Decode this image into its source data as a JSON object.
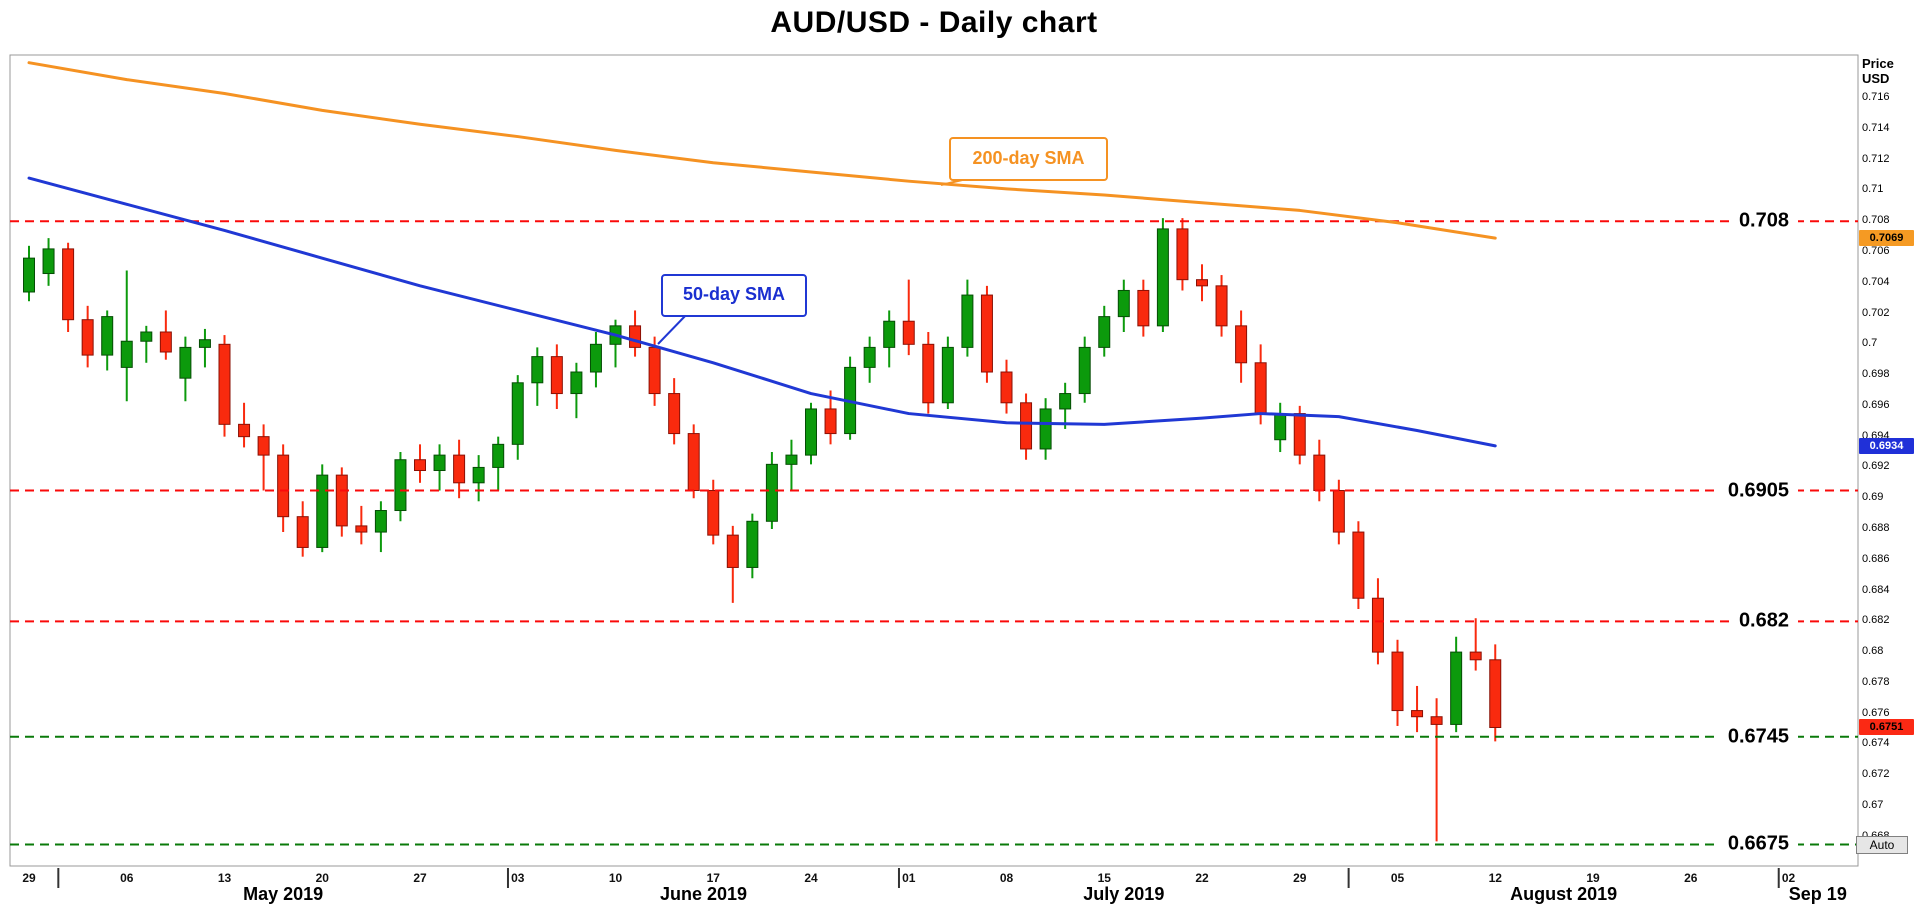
{
  "title": "AUD/USD - Daily chart",
  "controls": {
    "auto_label": "Auto"
  },
  "axis": {
    "price_header": [
      "Price",
      "USD"
    ],
    "price_ticks": [
      "0.716",
      "0.714",
      "0.712",
      "0.71",
      "0.708",
      "0.706",
      "0.704",
      "0.702",
      "0.7",
      "0.698",
      "0.696",
      "0.694",
      "0.692",
      "0.69",
      "0.688",
      "0.686",
      "0.684",
      "0.682",
      "0.68",
      "0.678",
      "0.676",
      "0.674",
      "0.672",
      "0.67",
      "0.668"
    ],
    "date_ticks": [
      {
        "i": 0,
        "label": "29"
      },
      {
        "i": 5,
        "label": "06"
      },
      {
        "i": 10,
        "label": "13"
      },
      {
        "i": 15,
        "label": "20"
      },
      {
        "i": 20,
        "label": "27"
      },
      {
        "i": 25,
        "label": "03"
      },
      {
        "i": 30,
        "label": "10"
      },
      {
        "i": 35,
        "label": "17"
      },
      {
        "i": 40,
        "label": "24"
      },
      {
        "i": 45,
        "label": "01"
      },
      {
        "i": 50,
        "label": "08"
      },
      {
        "i": 55,
        "label": "15"
      },
      {
        "i": 60,
        "label": "22"
      },
      {
        "i": 65,
        "label": "29"
      },
      {
        "i": 70,
        "label": "05"
      },
      {
        "i": 75,
        "label": "12"
      },
      {
        "i": 80,
        "label": "19"
      },
      {
        "i": 85,
        "label": "26"
      },
      {
        "i": 90,
        "label": "02"
      }
    ],
    "month_labels": [
      {
        "i": 13,
        "label": "May 2019"
      },
      {
        "i": 34.5,
        "label": "June 2019"
      },
      {
        "i": 56,
        "label": "July 2019"
      },
      {
        "i": 78.5,
        "label": "August 2019"
      },
      {
        "i": 91.5,
        "label": "Sep 19"
      }
    ],
    "month_separators": [
      1.5,
      24.5,
      44.5,
      67.5,
      89.5
    ]
  },
  "annotations": {
    "sma200": {
      "label": "200-day SMA",
      "color": "#f59222"
    },
    "sma50": {
      "label": "50-day SMA",
      "color": "#2038d4"
    }
  },
  "price_tags": [
    {
      "name": "tag-sma200-value",
      "label": "0.7069",
      "value": 0.7069,
      "bg": "#f59a23",
      "fg": "#000000"
    },
    {
      "name": "tag-sma50-value",
      "label": "0.6934",
      "value": 0.6934,
      "bg": "#2030d8",
      "fg": "#ffffff"
    },
    {
      "name": "tag-last-price",
      "label": "0.6751",
      "value": 0.6751,
      "bg": "#fb2914",
      "fg": "#000000"
    }
  ],
  "chart_data": {
    "type": "candlestick",
    "symbol": "AUD/USD",
    "timeframe": "Daily",
    "title": "AUD/USD - Daily chart",
    "ylabel": "Price USD",
    "ylim": [
      0.6661,
      0.7188
    ],
    "grid": false,
    "colors": {
      "up_fill": "#0c9a0c",
      "up_stroke": "#054d05",
      "down_fill": "#f92a0e",
      "down_stroke": "#8a1005"
    },
    "levels": [
      {
        "label": "0.708",
        "value": 0.708,
        "color": "#fa0a0a"
      },
      {
        "label": "0.6905",
        "value": 0.6905,
        "color": "#fa0a0a"
      },
      {
        "label": "0.682",
        "value": 0.682,
        "color": "#fa0a0a"
      },
      {
        "label": "0.6745",
        "value": 0.6745,
        "color": "#0a7a0a"
      },
      {
        "label": "0.6675",
        "value": 0.6675,
        "color": "#0a7a0a"
      }
    ],
    "series": [
      {
        "name": "200-day SMA",
        "color": "#f59222",
        "points": [
          [
            0,
            0.7183
          ],
          [
            5,
            0.7172
          ],
          [
            10,
            0.7163
          ],
          [
            15,
            0.7152
          ],
          [
            20,
            0.7143
          ],
          [
            25,
            0.7135
          ],
          [
            30,
            0.7126
          ],
          [
            35,
            0.7118
          ],
          [
            40,
            0.7112
          ],
          [
            45,
            0.7106
          ],
          [
            50,
            0.7101
          ],
          [
            55,
            0.7097
          ],
          [
            60,
            0.7092
          ],
          [
            65,
            0.7087
          ],
          [
            70,
            0.7079
          ],
          [
            75,
            0.7069
          ]
        ]
      },
      {
        "name": "50-day SMA",
        "color": "#2038d4",
        "points": [
          [
            0,
            0.7108
          ],
          [
            5,
            0.7091
          ],
          [
            10,
            0.7074
          ],
          [
            15,
            0.7056
          ],
          [
            20,
            0.7038
          ],
          [
            25,
            0.7022
          ],
          [
            30,
            0.7006
          ],
          [
            35,
            0.6988
          ],
          [
            40,
            0.6968
          ],
          [
            45,
            0.6955
          ],
          [
            50,
            0.6949
          ],
          [
            55,
            0.6948
          ],
          [
            60,
            0.6952
          ],
          [
            63,
            0.6955
          ],
          [
            67,
            0.6953
          ],
          [
            71,
            0.6944
          ],
          [
            75,
            0.6934
          ]
        ]
      }
    ],
    "candles": [
      [
        "2019-04-29",
        0.7034,
        0.7064,
        0.7028,
        0.7056
      ],
      [
        "2019-04-30",
        0.7046,
        0.7069,
        0.7038,
        0.7062
      ],
      [
        "2019-05-01",
        0.7062,
        0.7066,
        0.7008,
        0.7016
      ],
      [
        "2019-05-02",
        0.7016,
        0.7025,
        0.6985,
        0.6993
      ],
      [
        "2019-05-03",
        0.6993,
        0.7022,
        0.6983,
        0.7018
      ],
      [
        "2019-05-06",
        0.6985,
        0.7048,
        0.6963,
        0.7002
      ],
      [
        "2019-05-07",
        0.7002,
        0.7012,
        0.6988,
        0.7008
      ],
      [
        "2019-05-08",
        0.7008,
        0.7022,
        0.699,
        0.6995
      ],
      [
        "2019-05-09",
        0.6978,
        0.7005,
        0.6963,
        0.6998
      ],
      [
        "2019-05-10",
        0.6998,
        0.701,
        0.6985,
        0.7003
      ],
      [
        "2019-05-13",
        0.7,
        0.7006,
        0.694,
        0.6948
      ],
      [
        "2019-05-14",
        0.6948,
        0.6962,
        0.6933,
        0.694
      ],
      [
        "2019-05-15",
        0.694,
        0.6948,
        0.6905,
        0.6928
      ],
      [
        "2019-05-16",
        0.6928,
        0.6935,
        0.6878,
        0.6888
      ],
      [
        "2019-05-17",
        0.6888,
        0.6898,
        0.6862,
        0.6868
      ],
      [
        "2019-05-20",
        0.6868,
        0.6922,
        0.6865,
        0.6915
      ],
      [
        "2019-05-21",
        0.6915,
        0.692,
        0.6875,
        0.6882
      ],
      [
        "2019-05-22",
        0.6882,
        0.6895,
        0.687,
        0.6878
      ],
      [
        "2019-05-23",
        0.6878,
        0.6898,
        0.6865,
        0.6892
      ],
      [
        "2019-05-24",
        0.6892,
        0.693,
        0.6885,
        0.6925
      ],
      [
        "2019-05-27",
        0.6925,
        0.6935,
        0.691,
        0.6918
      ],
      [
        "2019-05-28",
        0.6918,
        0.6935,
        0.6905,
        0.6928
      ],
      [
        "2019-05-29",
        0.6928,
        0.6938,
        0.69,
        0.691
      ],
      [
        "2019-05-30",
        0.691,
        0.6928,
        0.6898,
        0.692
      ],
      [
        "2019-05-31",
        0.692,
        0.694,
        0.6905,
        0.6935
      ],
      [
        "2019-06-03",
        0.6935,
        0.698,
        0.6925,
        0.6975
      ],
      [
        "2019-06-04",
        0.6975,
        0.6998,
        0.696,
        0.6992
      ],
      [
        "2019-06-05",
        0.6992,
        0.7,
        0.6958,
        0.6968
      ],
      [
        "2019-06-06",
        0.6968,
        0.6988,
        0.6952,
        0.6982
      ],
      [
        "2019-06-07",
        0.6982,
        0.7008,
        0.6972,
        0.7
      ],
      [
        "2019-06-10",
        0.7,
        0.7016,
        0.6985,
        0.7012
      ],
      [
        "2019-06-11",
        0.7012,
        0.7022,
        0.6992,
        0.6998
      ],
      [
        "2019-06-12",
        0.6998,
        0.7005,
        0.696,
        0.6968
      ],
      [
        "2019-06-13",
        0.6968,
        0.6978,
        0.6935,
        0.6942
      ],
      [
        "2019-06-14",
        0.6942,
        0.6948,
        0.69,
        0.6905
      ],
      [
        "2019-06-17",
        0.6905,
        0.6912,
        0.687,
        0.6876
      ],
      [
        "2019-06-18",
        0.6876,
        0.6882,
        0.6832,
        0.6855
      ],
      [
        "2019-06-19",
        0.6855,
        0.689,
        0.6848,
        0.6885
      ],
      [
        "2019-06-20",
        0.6885,
        0.693,
        0.688,
        0.6922
      ],
      [
        "2019-06-21",
        0.6922,
        0.6938,
        0.6905,
        0.6928
      ],
      [
        "2019-06-24",
        0.6928,
        0.6962,
        0.6922,
        0.6958
      ],
      [
        "2019-06-25",
        0.6958,
        0.697,
        0.6935,
        0.6942
      ],
      [
        "2019-06-26",
        0.6942,
        0.6992,
        0.6938,
        0.6985
      ],
      [
        "2019-06-27",
        0.6985,
        0.7005,
        0.6975,
        0.6998
      ],
      [
        "2019-06-28",
        0.6998,
        0.7022,
        0.6985,
        0.7015
      ],
      [
        "2019-07-01",
        0.7015,
        0.7042,
        0.6993,
        0.7
      ],
      [
        "2019-07-02",
        0.7,
        0.7008,
        0.6955,
        0.6962
      ],
      [
        "2019-07-03",
        0.6962,
        0.7005,
        0.6958,
        0.6998
      ],
      [
        "2019-07-04",
        0.6998,
        0.7042,
        0.6992,
        0.7032
      ],
      [
        "2019-07-05",
        0.7032,
        0.7038,
        0.6975,
        0.6982
      ],
      [
        "2019-07-08",
        0.6982,
        0.699,
        0.6955,
        0.6962
      ],
      [
        "2019-07-09",
        0.6962,
        0.6968,
        0.6925,
        0.6932
      ],
      [
        "2019-07-10",
        0.6932,
        0.6965,
        0.6925,
        0.6958
      ],
      [
        "2019-07-11",
        0.6958,
        0.6975,
        0.6945,
        0.6968
      ],
      [
        "2019-07-12",
        0.6968,
        0.7005,
        0.6962,
        0.6998
      ],
      [
        "2019-07-15",
        0.6998,
        0.7025,
        0.6992,
        0.7018
      ],
      [
        "2019-07-16",
        0.7018,
        0.7042,
        0.7008,
        0.7035
      ],
      [
        "2019-07-17",
        0.7035,
        0.7042,
        0.7005,
        0.7012
      ],
      [
        "2019-07-18",
        0.7012,
        0.7082,
        0.7008,
        0.7075
      ],
      [
        "2019-07-19",
        0.7075,
        0.7082,
        0.7035,
        0.7042
      ],
      [
        "2019-07-22",
        0.7042,
        0.7052,
        0.7028,
        0.7038
      ],
      [
        "2019-07-23",
        0.7038,
        0.7045,
        0.7005,
        0.7012
      ],
      [
        "2019-07-24",
        0.7012,
        0.7022,
        0.6975,
        0.6988
      ],
      [
        "2019-07-25",
        0.6988,
        0.7,
        0.6948,
        0.6955
      ],
      [
        "2019-07-26",
        0.6938,
        0.6962,
        0.693,
        0.6955
      ],
      [
        "2019-07-29",
        0.6955,
        0.696,
        0.6922,
        0.6928
      ],
      [
        "2019-07-30",
        0.6928,
        0.6938,
        0.6898,
        0.6905
      ],
      [
        "2019-07-31",
        0.6905,
        0.6912,
        0.687,
        0.6878
      ],
      [
        "2019-08-01",
        0.6878,
        0.6885,
        0.6828,
        0.6835
      ],
      [
        "2019-08-02",
        0.6835,
        0.6848,
        0.6792,
        0.68
      ],
      [
        "2019-08-05",
        0.68,
        0.6808,
        0.6752,
        0.6762
      ],
      [
        "2019-08-06",
        0.6762,
        0.6778,
        0.6748,
        0.6758
      ],
      [
        "2019-08-07",
        0.6758,
        0.677,
        0.6677,
        0.6753
      ],
      [
        "2019-08-08",
        0.6753,
        0.681,
        0.6748,
        0.68
      ],
      [
        "2019-08-09",
        0.68,
        0.6822,
        0.6788,
        0.6795
      ],
      [
        "2019-08-12",
        0.6795,
        0.6805,
        0.6742,
        0.6751
      ]
    ]
  }
}
